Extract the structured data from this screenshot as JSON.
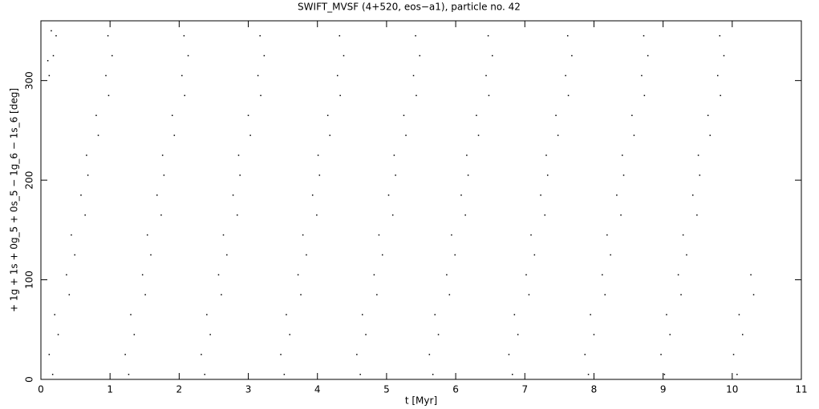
{
  "chart_data": {
    "type": "scatter",
    "title": "SWIFT_MVSF (4+520, eos−a1), particle no. 42",
    "x_label": "t [Myr]",
    "y_label": "+ 1g + 1s + 0g_5 + 0s_5 − 1g_6 − 1s_6 [deg]",
    "xlim": [
      0,
      11
    ],
    "ylim": [
      0,
      360
    ],
    "xticks": [
      0,
      1,
      2,
      3,
      4,
      5,
      6,
      7,
      8,
      9,
      10,
      11
    ],
    "yticks": [
      0,
      100,
      200,
      300
    ],
    "color": "#000000",
    "x": [
      0.12,
      0.18,
      0.22,
      0.1,
      0.15,
      0.17,
      0.12,
      0.25,
      0.2,
      0.41,
      0.37,
      0.49,
      0.44,
      0.64,
      0.58,
      0.68,
      0.66,
      0.83,
      0.8,
      0.98,
      0.94,
      1.03,
      0.97,
      1.27,
      1.22,
      1.35,
      1.3,
      1.51,
      1.47,
      1.59,
      1.54,
      1.74,
      1.68,
      1.78,
      1.76,
      1.93,
      1.9,
      2.08,
      2.04,
      2.13,
      2.07,
      2.37,
      2.32,
      2.45,
      2.4,
      2.61,
      2.57,
      2.69,
      2.64,
      2.84,
      2.78,
      2.88,
      2.86,
      3.03,
      3,
      3.18,
      3.14,
      3.23,
      3.17,
      3.52,
      3.47,
      3.6,
      3.55,
      3.76,
      3.72,
      3.84,
      3.79,
      3.99,
      3.93,
      4.03,
      4.01,
      4.18,
      4.15,
      4.33,
      4.29,
      4.38,
      4.32,
      4.62,
      4.57,
      4.7,
      4.65,
      4.86,
      4.82,
      4.94,
      4.89,
      5.09,
      5.03,
      5.13,
      5.11,
      5.28,
      5.25,
      5.43,
      5.39,
      5.48,
      5.42,
      5.67,
      5.62,
      5.75,
      5.7,
      5.91,
      5.87,
      5.99,
      5.94,
      6.14,
      6.08,
      6.18,
      6.16,
      6.33,
      6.3,
      6.48,
      6.44,
      6.53,
      6.47,
      6.82,
      6.77,
      6.9,
      6.85,
      7.06,
      7.02,
      7.14,
      7.09,
      7.29,
      7.23,
      7.33,
      7.31,
      7.48,
      7.45,
      7.63,
      7.59,
      7.68,
      7.62,
      7.92,
      7.87,
      8,
      7.95,
      8.16,
      8.12,
      8.24,
      8.19,
      8.39,
      8.33,
      8.43,
      8.41,
      8.58,
      8.55,
      8.73,
      8.69,
      8.78,
      8.72,
      9.02,
      8.97,
      9.1,
      9.05,
      9.26,
      9.22,
      9.34,
      9.29,
      9.49,
      9.43,
      9.53,
      9.51,
      9.68,
      9.65,
      9.83,
      9.79,
      9.88,
      9.82,
      10.07,
      10.02,
      10.15,
      10.1,
      10.31,
      10.27
    ],
    "y": [
      305,
      325,
      345,
      320,
      350,
      5,
      25,
      45,
      65,
      85,
      105,
      125,
      145,
      165,
      185,
      205,
      225,
      245,
      265,
      285,
      305,
      325,
      345,
      5,
      25,
      45,
      65,
      85,
      105,
      125,
      145,
      165,
      185,
      205,
      225,
      245,
      265,
      285,
      305,
      325,
      345,
      5,
      25,
      45,
      65,
      85,
      105,
      125,
      145,
      165,
      185,
      205,
      225,
      245,
      265,
      285,
      305,
      325,
      345,
      5,
      25,
      45,
      65,
      85,
      105,
      125,
      145,
      165,
      185,
      205,
      225,
      245,
      265,
      285,
      305,
      325,
      345,
      5,
      25,
      45,
      65,
      85,
      105,
      125,
      145,
      165,
      185,
      205,
      225,
      245,
      265,
      285,
      305,
      325,
      345,
      5,
      25,
      45,
      65,
      85,
      105,
      125,
      145,
      165,
      185,
      205,
      225,
      245,
      265,
      285,
      305,
      325,
      345,
      5,
      25,
      45,
      65,
      85,
      105,
      125,
      145,
      165,
      185,
      205,
      225,
      245,
      265,
      285,
      305,
      325,
      345,
      5,
      25,
      45,
      65,
      85,
      105,
      125,
      145,
      165,
      185,
      205,
      225,
      245,
      265,
      285,
      305,
      325,
      345,
      5,
      25,
      45,
      65,
      85,
      105,
      125,
      145,
      165,
      185,
      205,
      225,
      245,
      265,
      285,
      305,
      325,
      345,
      5,
      25,
      45,
      65,
      85,
      105
    ]
  }
}
